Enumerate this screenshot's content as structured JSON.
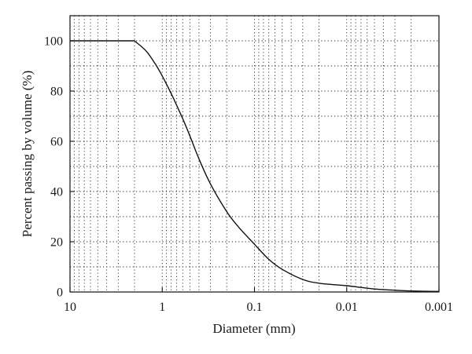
{
  "chart_data": {
    "type": "line",
    "xlabel": "Diameter (mm)",
    "ylabel": "Percent passing by volume (%)",
    "x_scale": "log",
    "x_reversed": true,
    "xlim": [
      10,
      0.001
    ],
    "ylim": [
      0,
      110
    ],
    "x_ticks": [
      "10",
      "1",
      "0.1",
      "0.01",
      "0.001"
    ],
    "y_ticks": [
      "0",
      "20",
      "40",
      "60",
      "80",
      "100"
    ],
    "grid": true,
    "series": [
      {
        "values": [
          [
            10,
            100
          ],
          [
            2,
            100
          ],
          [
            1.5,
            96
          ],
          [
            1.2,
            91
          ],
          [
            1,
            86
          ],
          [
            0.8,
            79
          ],
          [
            0.6,
            69
          ],
          [
            0.5,
            62
          ],
          [
            0.4,
            53
          ],
          [
            0.3,
            43
          ],
          [
            0.2,
            32
          ],
          [
            0.15,
            26
          ],
          [
            0.1,
            19
          ],
          [
            0.07,
            13
          ],
          [
            0.05,
            9
          ],
          [
            0.03,
            5
          ],
          [
            0.02,
            3.5
          ],
          [
            0.01,
            2.5
          ],
          [
            0.007,
            1.8
          ],
          [
            0.005,
            1.2
          ],
          [
            0.003,
            0.7
          ],
          [
            0.002,
            0.4
          ],
          [
            0.001,
            0.2
          ]
        ]
      }
    ]
  }
}
